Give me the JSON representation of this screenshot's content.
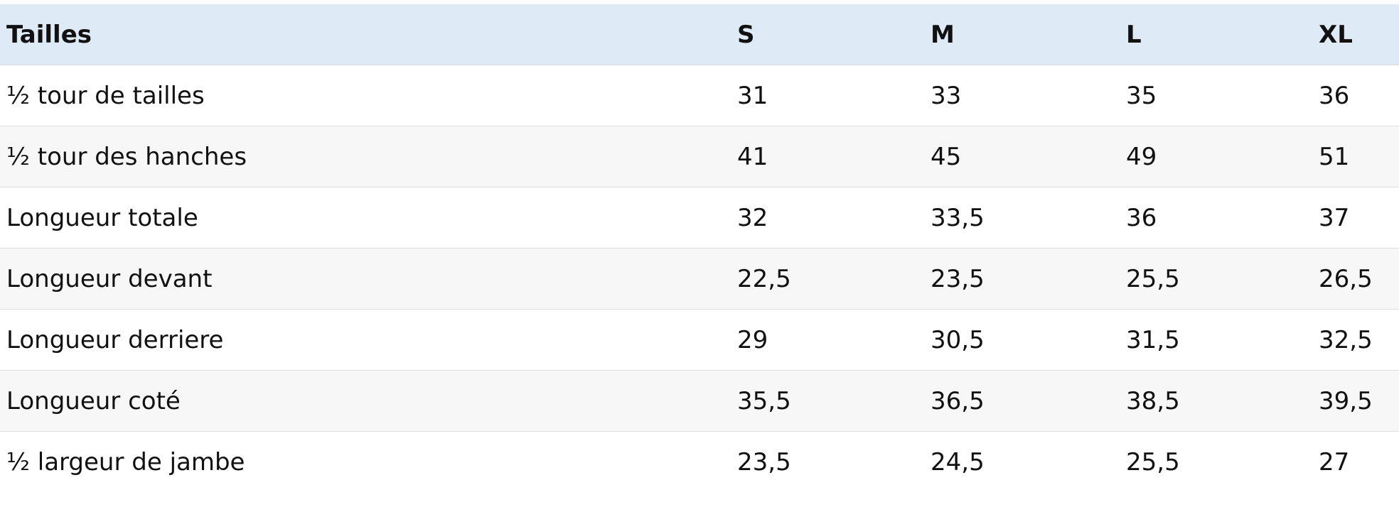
{
  "table": {
    "header": [
      "Tailles",
      "S",
      "M",
      "L",
      "XL"
    ],
    "rows": [
      [
        "½ tour de tailles",
        "31",
        "33",
        "35",
        "36"
      ],
      [
        "½ tour des hanches",
        "41",
        "45",
        "49",
        "51"
      ],
      [
        "Longueur totale",
        "32",
        "33,5",
        "36",
        "37"
      ],
      [
        "Longueur devant",
        "22,5",
        "23,5",
        "25,5",
        "26,5"
      ],
      [
        "Longueur derriere",
        "29",
        "30,5",
        "31,5",
        "32,5"
      ],
      [
        "Longueur coté",
        "35,5",
        "36,5",
        "38,5",
        "39,5"
      ],
      [
        "½ largeur de jambe",
        "23,5",
        "24,5",
        "25,5",
        "27"
      ]
    ]
  }
}
